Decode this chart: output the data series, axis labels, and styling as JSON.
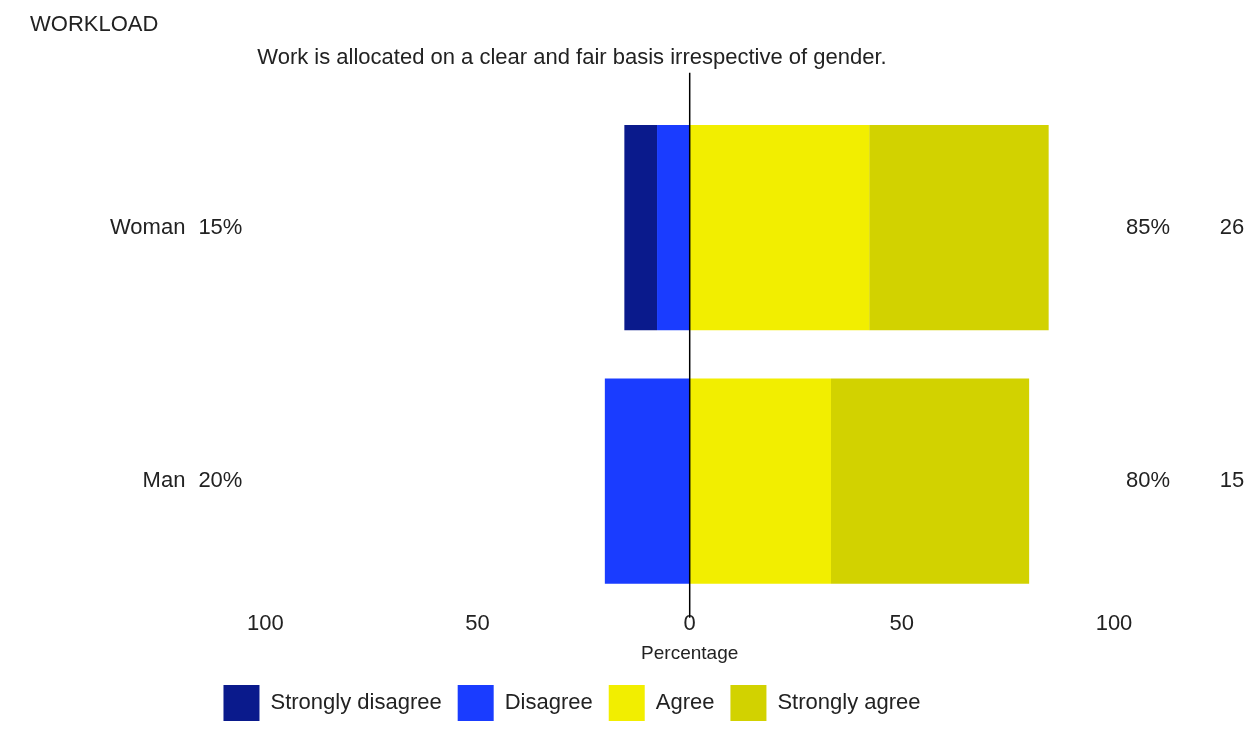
{
  "chart_data": {
    "type": "bar",
    "orientation": "horizontal",
    "stacked": true,
    "title": "WORKLOAD",
    "subtitle": "Work is allocated on a clear and fair basis irrespective of gender.",
    "xlabel": "Percentage",
    "categories": [
      "Woman",
      "Man"
    ],
    "series": [
      {
        "name": "Disagree",
        "color": "#1a3cff",
        "values": [
          -7.7,
          -20
        ]
      },
      {
        "name": "Strongly disagree",
        "color": "#0a1a8c",
        "values": [
          -7.7,
          null
        ]
      },
      {
        "name": "Agree",
        "color": "#f2ee00",
        "values": [
          42.3,
          33.3
        ]
      },
      {
        "name": "Strongly agree",
        "color": "#d2d200",
        "values": [
          42.3,
          46.7
        ]
      }
    ],
    "xlim": [
      -100,
      100
    ],
    "xticks": [
      {
        "value": -100,
        "label": "100"
      },
      {
        "value": -50,
        "label": "50"
      },
      0,
      50,
      100
    ],
    "ref_lines": [
      {
        "axis": "x",
        "value": 0,
        "color": "#000000"
      }
    ],
    "annotations": [
      "15%",
      "85%",
      "26",
      "20%",
      "80%",
      "15"
    ],
    "legend": "bottom",
    "grid": false
  }
}
